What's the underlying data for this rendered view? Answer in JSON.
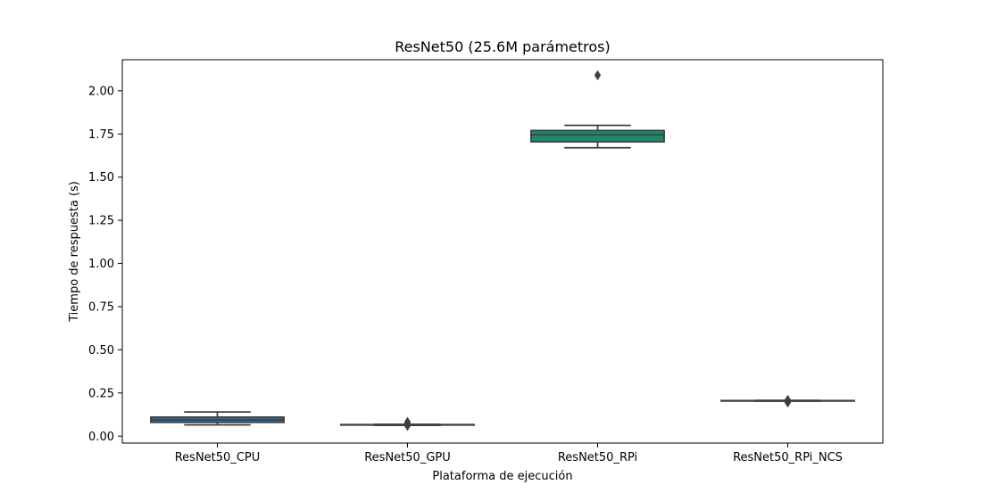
{
  "chart_data": {
    "type": "box",
    "title": "ResNet50 (25.6M parámetros)",
    "xlabel": "Plataforma de ejecución",
    "ylabel": "Tiempo de respuesta (s)",
    "ylim": [
      -0.04,
      2.18
    ],
    "yticks": [
      0.0,
      0.25,
      0.5,
      0.75,
      1.0,
      1.25,
      1.5,
      1.75,
      2.0
    ],
    "ytick_labels": [
      "0.00",
      "0.25",
      "0.50",
      "0.75",
      "1.00",
      "1.25",
      "1.50",
      "1.75",
      "2.00"
    ],
    "grid": false,
    "categories": [
      "ResNet50_CPU",
      "ResNet50_GPU",
      "ResNet50_RPi",
      "ResNet50_RPi_NCS"
    ],
    "boxes": [
      {
        "whisker_low": 0.065,
        "q1": 0.08,
        "median": 0.095,
        "q3": 0.11,
        "whisker_high": 0.14,
        "outliers": [],
        "color": "#2a6fa8"
      },
      {
        "whisker_low": 0.063,
        "q1": 0.065,
        "median": 0.066,
        "q3": 0.067,
        "whisker_high": 0.068,
        "outliers": [
          0.06,
          0.075,
          0.082
        ],
        "color": "#3d88b5"
      },
      {
        "whisker_low": 1.67,
        "q1": 1.705,
        "median": 1.745,
        "q3": 1.77,
        "whisker_high": 1.8,
        "outliers": [
          2.09
        ],
        "color": "#1a8c6e"
      },
      {
        "whisker_low": 0.203,
        "q1": 0.204,
        "median": 0.205,
        "q3": 0.206,
        "whisker_high": 0.207,
        "outliers": [
          0.195,
          0.21
        ],
        "color": "#1aa08a"
      }
    ],
    "line_color": "#3f3f3f"
  }
}
